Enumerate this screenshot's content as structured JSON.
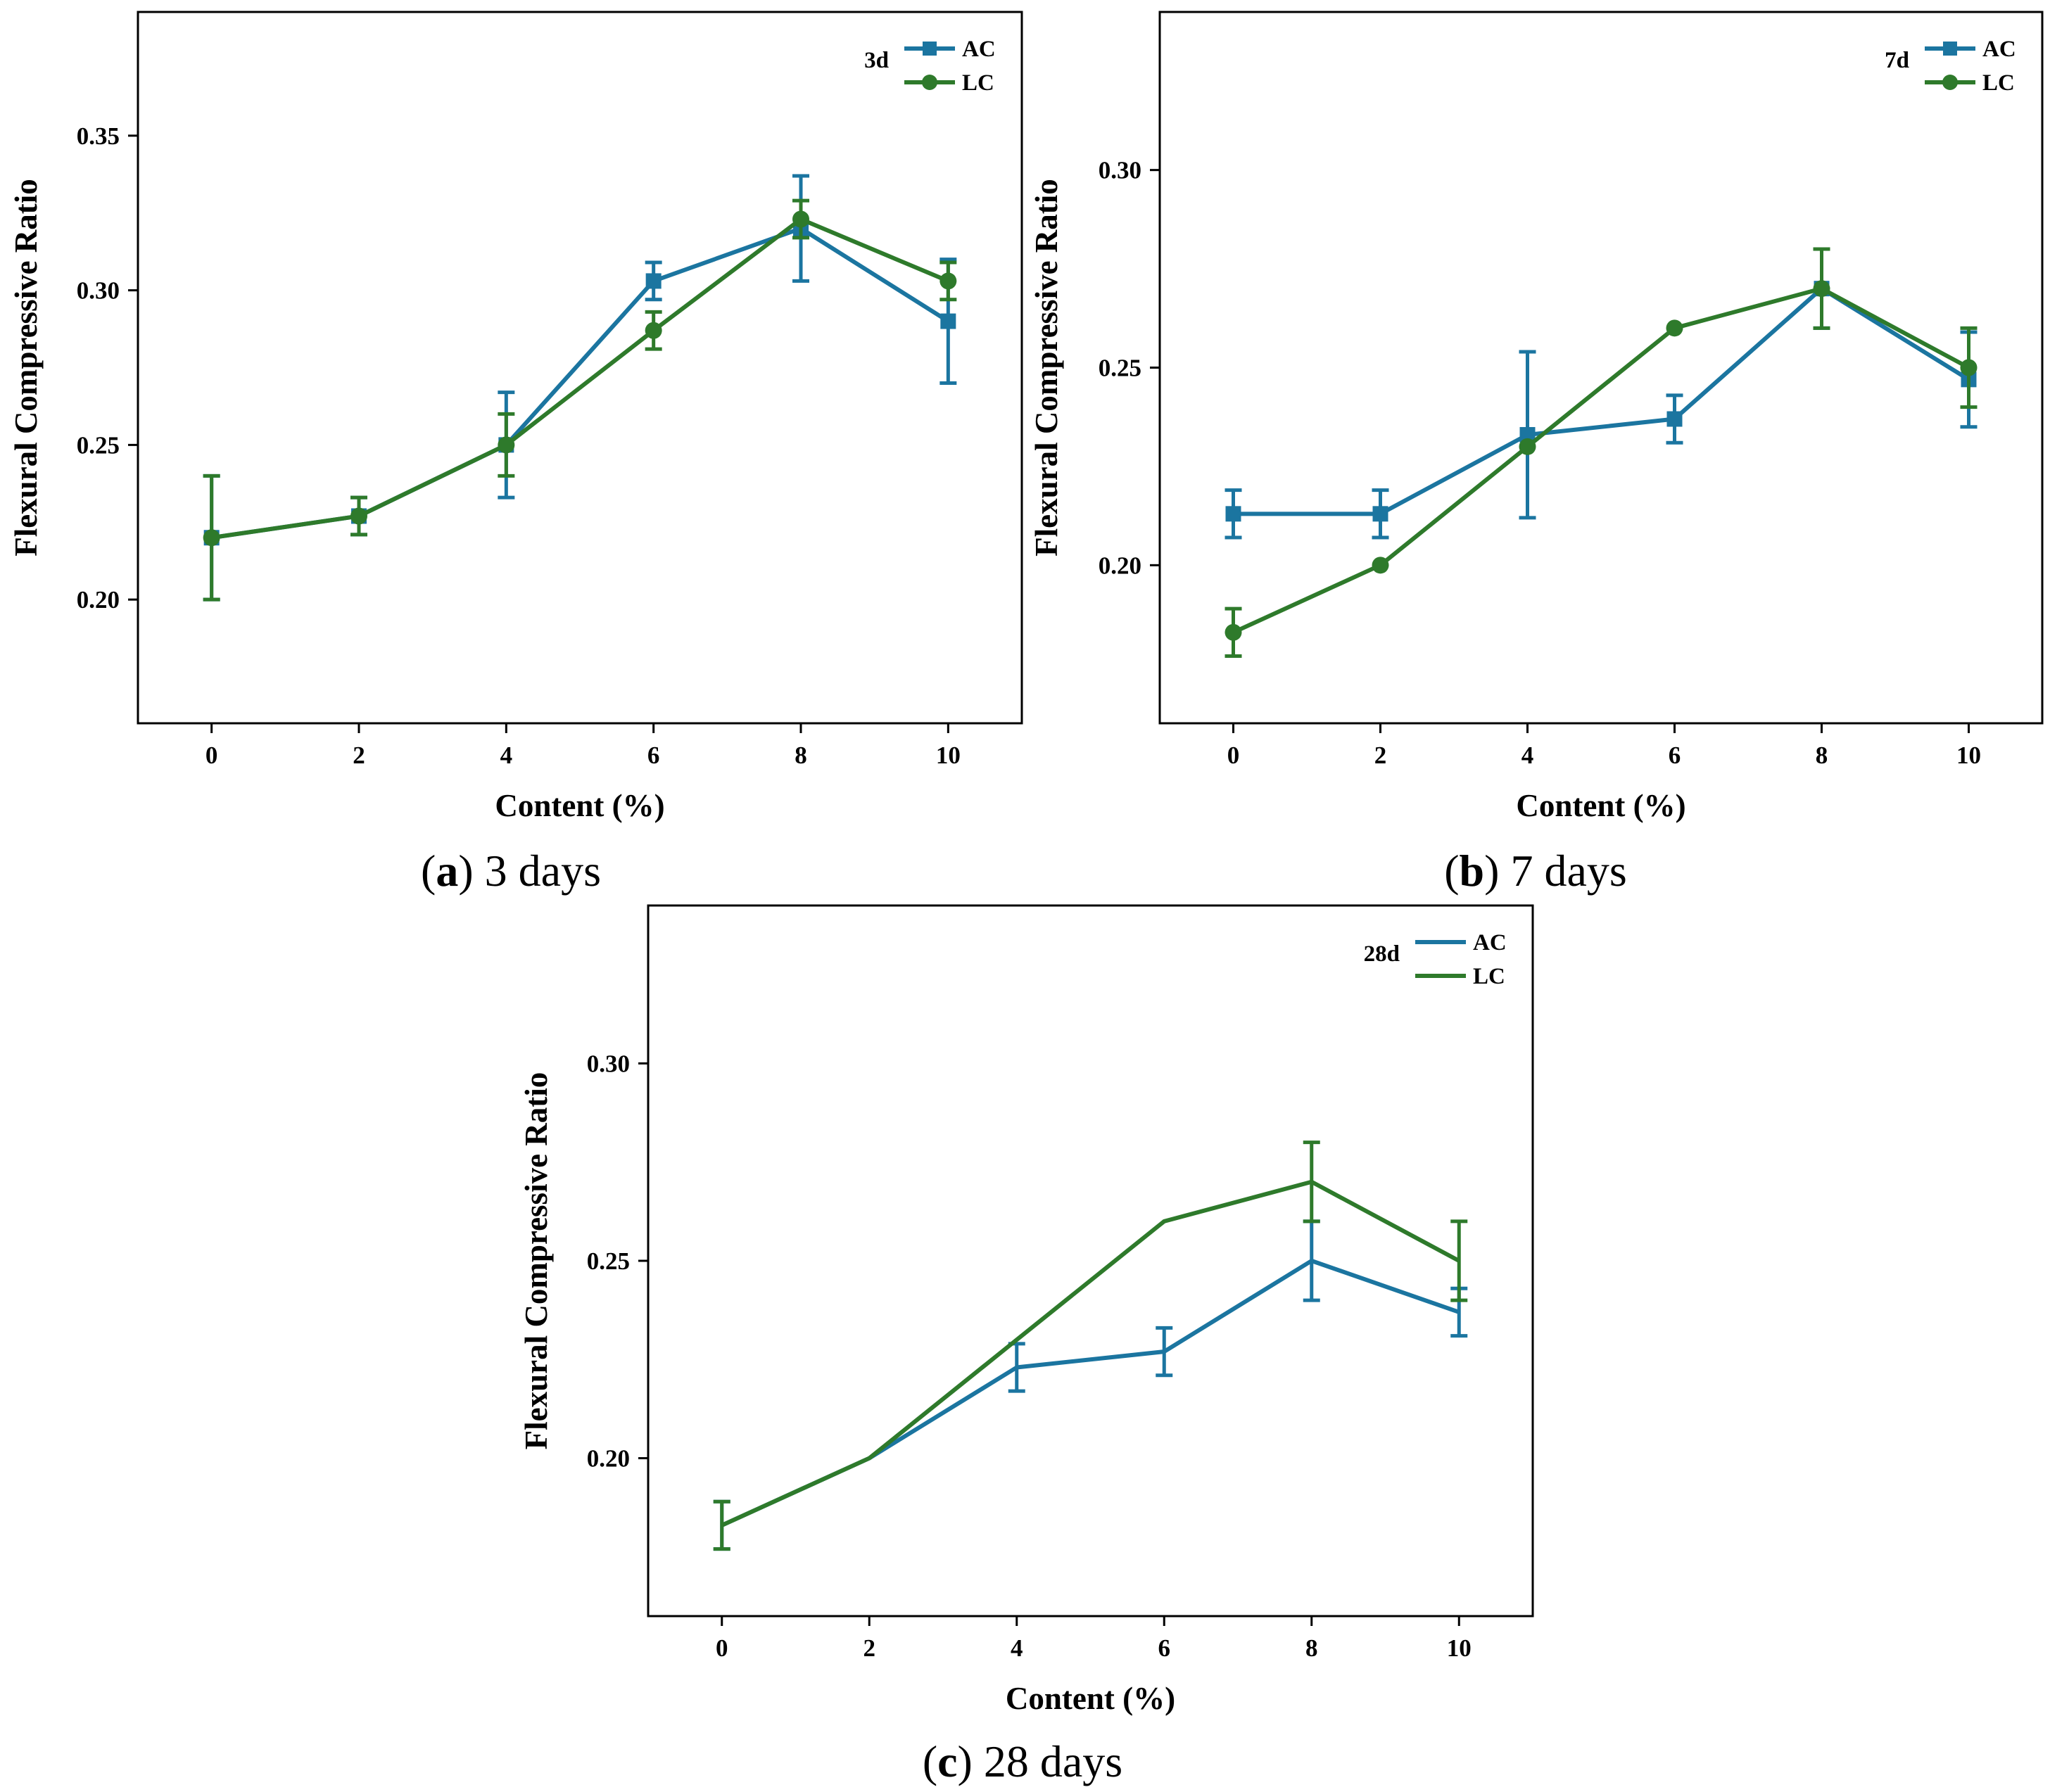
{
  "chart_data": [
    {
      "type": "line",
      "panel_tag": "3d",
      "caption_letter": "a",
      "caption_text": "3 days",
      "xlabel": "Content (%)",
      "ylabel": "Flexural Compressive Ratio",
      "xlim": [
        -1,
        11
      ],
      "ylim": [
        0.16,
        0.39
      ],
      "x_ticks": [
        0,
        2,
        4,
        6,
        8,
        10
      ],
      "x_tick_labels": [
        "0",
        "2",
        "4",
        "6",
        "8",
        "10"
      ],
      "y_ticks": [
        0.2,
        0.25,
        0.3,
        0.35
      ],
      "y_tick_labels": [
        "0.20",
        "0.25",
        "0.30",
        "0.35"
      ],
      "legend_position": "top-right",
      "markers": true,
      "series": [
        {
          "name": "AC",
          "color": "#1b75a0",
          "marker": "square",
          "x": [
            0,
            2,
            4,
            6,
            8,
            10
          ],
          "values": [
            0.22,
            0.227,
            0.25,
            0.303,
            0.32,
            0.29
          ],
          "errors": [
            0.02,
            0.006,
            0.017,
            0.006,
            0.017,
            0.02
          ]
        },
        {
          "name": "LC",
          "color": "#2e7a2b",
          "marker": "circle",
          "x": [
            0,
            2,
            4,
            6,
            8,
            10
          ],
          "values": [
            0.22,
            0.227,
            0.25,
            0.287,
            0.323,
            0.303
          ],
          "errors": [
            0.02,
            0.006,
            0.01,
            0.006,
            0.006,
            0.006
          ]
        }
      ]
    },
    {
      "type": "line",
      "panel_tag": "7d",
      "caption_letter": "b",
      "caption_text": "7 days",
      "xlabel": "Content (%)",
      "ylabel": "Flexural Compressive Ratio",
      "xlim": [
        -1,
        11
      ],
      "ylim": [
        0.16,
        0.34
      ],
      "x_ticks": [
        0,
        2,
        4,
        6,
        8,
        10
      ],
      "x_tick_labels": [
        "0",
        "2",
        "4",
        "6",
        "8",
        "10"
      ],
      "y_ticks": [
        0.2,
        0.25,
        0.3
      ],
      "y_tick_labels": [
        "0.20",
        "0.25",
        "0.30"
      ],
      "legend_position": "top-right",
      "markers": true,
      "series": [
        {
          "name": "AC",
          "color": "#1b75a0",
          "marker": "square",
          "x": [
            0,
            2,
            4,
            6,
            8,
            10
          ],
          "values": [
            0.213,
            0.213,
            0.233,
            0.237,
            0.27,
            0.247
          ],
          "errors": [
            0.006,
            0.006,
            0.021,
            0.006,
            0.01,
            0.012
          ]
        },
        {
          "name": "LC",
          "color": "#2e7a2b",
          "marker": "circle",
          "x": [
            0,
            2,
            4,
            6,
            8,
            10
          ],
          "values": [
            0.183,
            0.2,
            0.23,
            0.26,
            0.27,
            0.25
          ],
          "errors": [
            0.006,
            0.0,
            0.0,
            0.0,
            0.01,
            0.01
          ]
        }
      ]
    },
    {
      "type": "line",
      "panel_tag": "28d",
      "caption_letter": "c",
      "caption_text": "28 days",
      "xlabel": "Content (%)",
      "ylabel": "Flexural Compressive Ratio",
      "xlim": [
        -1,
        11
      ],
      "ylim": [
        0.16,
        0.34
      ],
      "x_ticks": [
        0,
        2,
        4,
        6,
        8,
        10
      ],
      "x_tick_labels": [
        "0",
        "2",
        "4",
        "6",
        "8",
        "10"
      ],
      "y_ticks": [
        0.2,
        0.25,
        0.3
      ],
      "y_tick_labels": [
        "0.20",
        "0.25",
        "0.30"
      ],
      "legend_position": "top-right",
      "markers": false,
      "series": [
        {
          "name": "AC",
          "color": "#1b75a0",
          "marker": "none",
          "x": [
            0,
            2,
            4,
            6,
            8,
            10
          ],
          "values": [
            0.183,
            0.2,
            0.223,
            0.227,
            0.25,
            0.237
          ],
          "errors": [
            0.006,
            0.0,
            0.006,
            0.006,
            0.01,
            0.006
          ]
        },
        {
          "name": "LC",
          "color": "#2e7a2b",
          "marker": "none",
          "x": [
            0,
            2,
            4,
            6,
            8,
            10
          ],
          "values": [
            0.183,
            0.2,
            0.23,
            0.26,
            0.27,
            0.25
          ],
          "errors": [
            0.006,
            0.0,
            0.0,
            0.0,
            0.01,
            0.01
          ]
        }
      ]
    }
  ]
}
